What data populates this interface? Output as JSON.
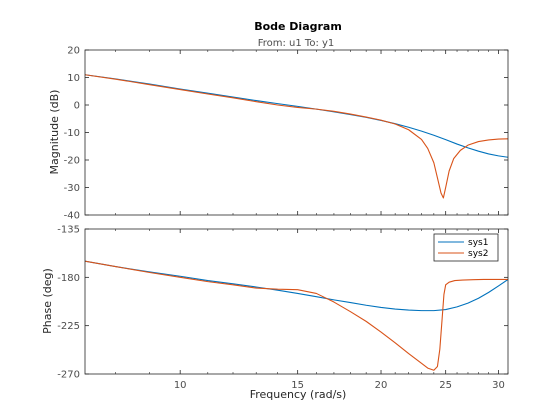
{
  "chart_data": {
    "type": "line",
    "title": "Bode Diagram",
    "subtitle": "From: u1  To: y1",
    "xlabel": "Frequency  (rad/s)",
    "xscale": "log",
    "xlim": [
      7.2,
      31
    ],
    "xticks": [
      10,
      15,
      20,
      25,
      30
    ],
    "grid": false,
    "panels": [
      {
        "name": "magnitude",
        "ylabel": "Magnitude (dB)",
        "ylim": [
          -40,
          20
        ],
        "yticks": [
          20,
          10,
          0,
          -10,
          -20,
          -30,
          -40
        ],
        "series": [
          {
            "name": "sys1",
            "color": "#0072BD",
            "x": [
              7.2,
              8,
              9,
              10,
              11,
              12,
              13,
              14,
              15,
              16,
              17,
              18,
              19,
              20,
              21,
              22,
              23,
              24,
              25,
              26,
              27,
              28,
              29,
              30,
              31
            ],
            "y": [
              11.0,
              9.5,
              7.6,
              5.8,
              4.3,
              2.9,
              1.6,
              0.5,
              -0.5,
              -1.5,
              -2.5,
              -3.5,
              -4.5,
              -5.6,
              -6.8,
              -8.1,
              -9.5,
              -11.0,
              -12.6,
              -14.2,
              -15.6,
              -16.8,
              -17.8,
              -18.5,
              -19.0
            ]
          },
          {
            "name": "sys2",
            "color": "#D95319",
            "x": [
              7.2,
              8,
              9,
              10,
              11,
              12,
              13,
              14,
              15,
              16,
              17,
              18,
              19,
              20,
              21,
              22,
              23,
              23.5,
              24,
              24.3,
              24.6,
              24.8,
              25.0,
              25.3,
              25.7,
              26.3,
              27,
              28,
              29,
              30,
              31
            ],
            "y": [
              11.0,
              9.4,
              7.4,
              5.6,
              4.0,
              2.6,
              1.2,
              0.0,
              -0.9,
              -1.5,
              -2.3,
              -3.3,
              -4.4,
              -5.5,
              -6.9,
              -9.0,
              -12.5,
              -15.8,
              -21.0,
              -26.5,
              -32.0,
              -33.8,
              -30.0,
              -24.0,
              -19.5,
              -16.5,
              -14.6,
              -13.3,
              -12.7,
              -12.4,
              -12.3
            ]
          }
        ]
      },
      {
        "name": "phase",
        "ylabel": "Phase (deg)",
        "ylim": [
          -270,
          -135
        ],
        "yticks": [
          -135,
          -180,
          -225,
          -270
        ],
        "legend": {
          "location": "top-right",
          "entries": [
            "sys1",
            "sys2"
          ]
        },
        "series": [
          {
            "name": "sys1",
            "color": "#0072BD",
            "x": [
              7.2,
              8,
              9,
              10,
              11,
              12,
              13,
              14,
              15,
              16,
              17,
              18,
              19,
              20,
              21,
              22,
              23,
              24,
              25,
              26,
              27,
              28,
              29,
              30,
              31
            ],
            "y": [
              -165.0,
              -170.0,
              -175.0,
              -179.0,
              -183.0,
              -186.0,
              -189.0,
              -192.0,
              -195.0,
              -198.0,
              -201.0,
              -203.5,
              -206.0,
              -208.0,
              -209.5,
              -210.5,
              -211.0,
              -211.0,
              -210.0,
              -207.5,
              -204.0,
              -199.5,
              -194.0,
              -188.0,
              -182.0
            ]
          },
          {
            "name": "sys2",
            "color": "#D95319",
            "x": [
              7.2,
              8,
              9,
              10,
              11,
              12,
              13,
              14,
              15,
              16,
              17,
              18,
              19,
              20,
              21,
              22,
              23,
              23.5,
              24,
              24.3,
              24.5,
              24.7,
              24.85,
              25.0,
              25.3,
              25.8,
              26.5,
              27.5,
              28.5,
              29.5,
              31
            ],
            "y": [
              -165.0,
              -170.0,
              -175.5,
              -180.0,
              -184.0,
              -187.0,
              -190.0,
              -191.0,
              -191.5,
              -195.0,
              -203.0,
              -212.0,
              -221.0,
              -231.0,
              -241.0,
              -251.0,
              -260.0,
              -264.5,
              -266.5,
              -263.0,
              -247.0,
              -218.0,
              -196.0,
              -187.0,
              -184.5,
              -183.0,
              -182.5,
              -182.2,
              -182.0,
              -182.0,
              -182.0
            ]
          }
        ]
      }
    ]
  }
}
